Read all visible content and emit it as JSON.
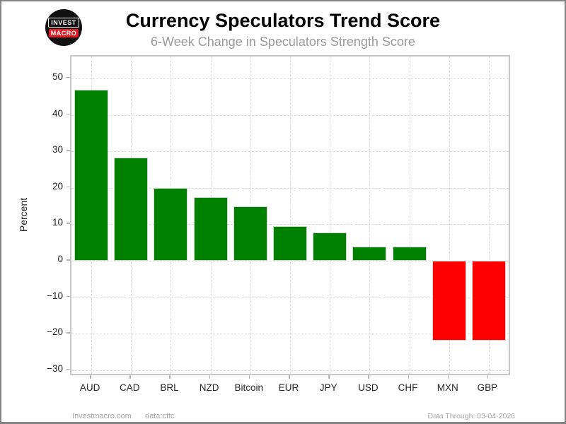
{
  "header": {
    "logo": {
      "line1": "INVEST",
      "line2": "MACRO",
      "badge_color": "#e11b22"
    },
    "title": "Currency Speculators Trend Score",
    "subtitle": "6-Week Change in Speculators Strength Score"
  },
  "chart_data": {
    "type": "bar",
    "title": "Currency Speculators Trend Score",
    "subtitle": "6-Week Change in Speculators Strength Score",
    "categories": [
      "AUD",
      "CAD",
      "BRL",
      "NZD",
      "Bitcoin",
      "EUR",
      "JPY",
      "USD",
      "CHF",
      "MXN",
      "GBP"
    ],
    "values": [
      46.8,
      28.2,
      20.0,
      17.5,
      14.9,
      9.4,
      7.8,
      3.9,
      3.9,
      -21.9,
      -21.9
    ],
    "xlabel": "",
    "ylabel": "Percent",
    "ylim": [
      -31,
      56
    ],
    "yticks": [
      -30,
      -20,
      -10,
      0,
      10,
      20,
      30,
      40,
      50
    ],
    "grid": true,
    "grid_style": "dashed",
    "legend": "none",
    "positive_color": "#008000",
    "negative_color": "#ff0000"
  },
  "footer": {
    "left": "Investmacro.com",
    "source": "data:cftc",
    "right": "Data Through: 03-04-2026"
  }
}
